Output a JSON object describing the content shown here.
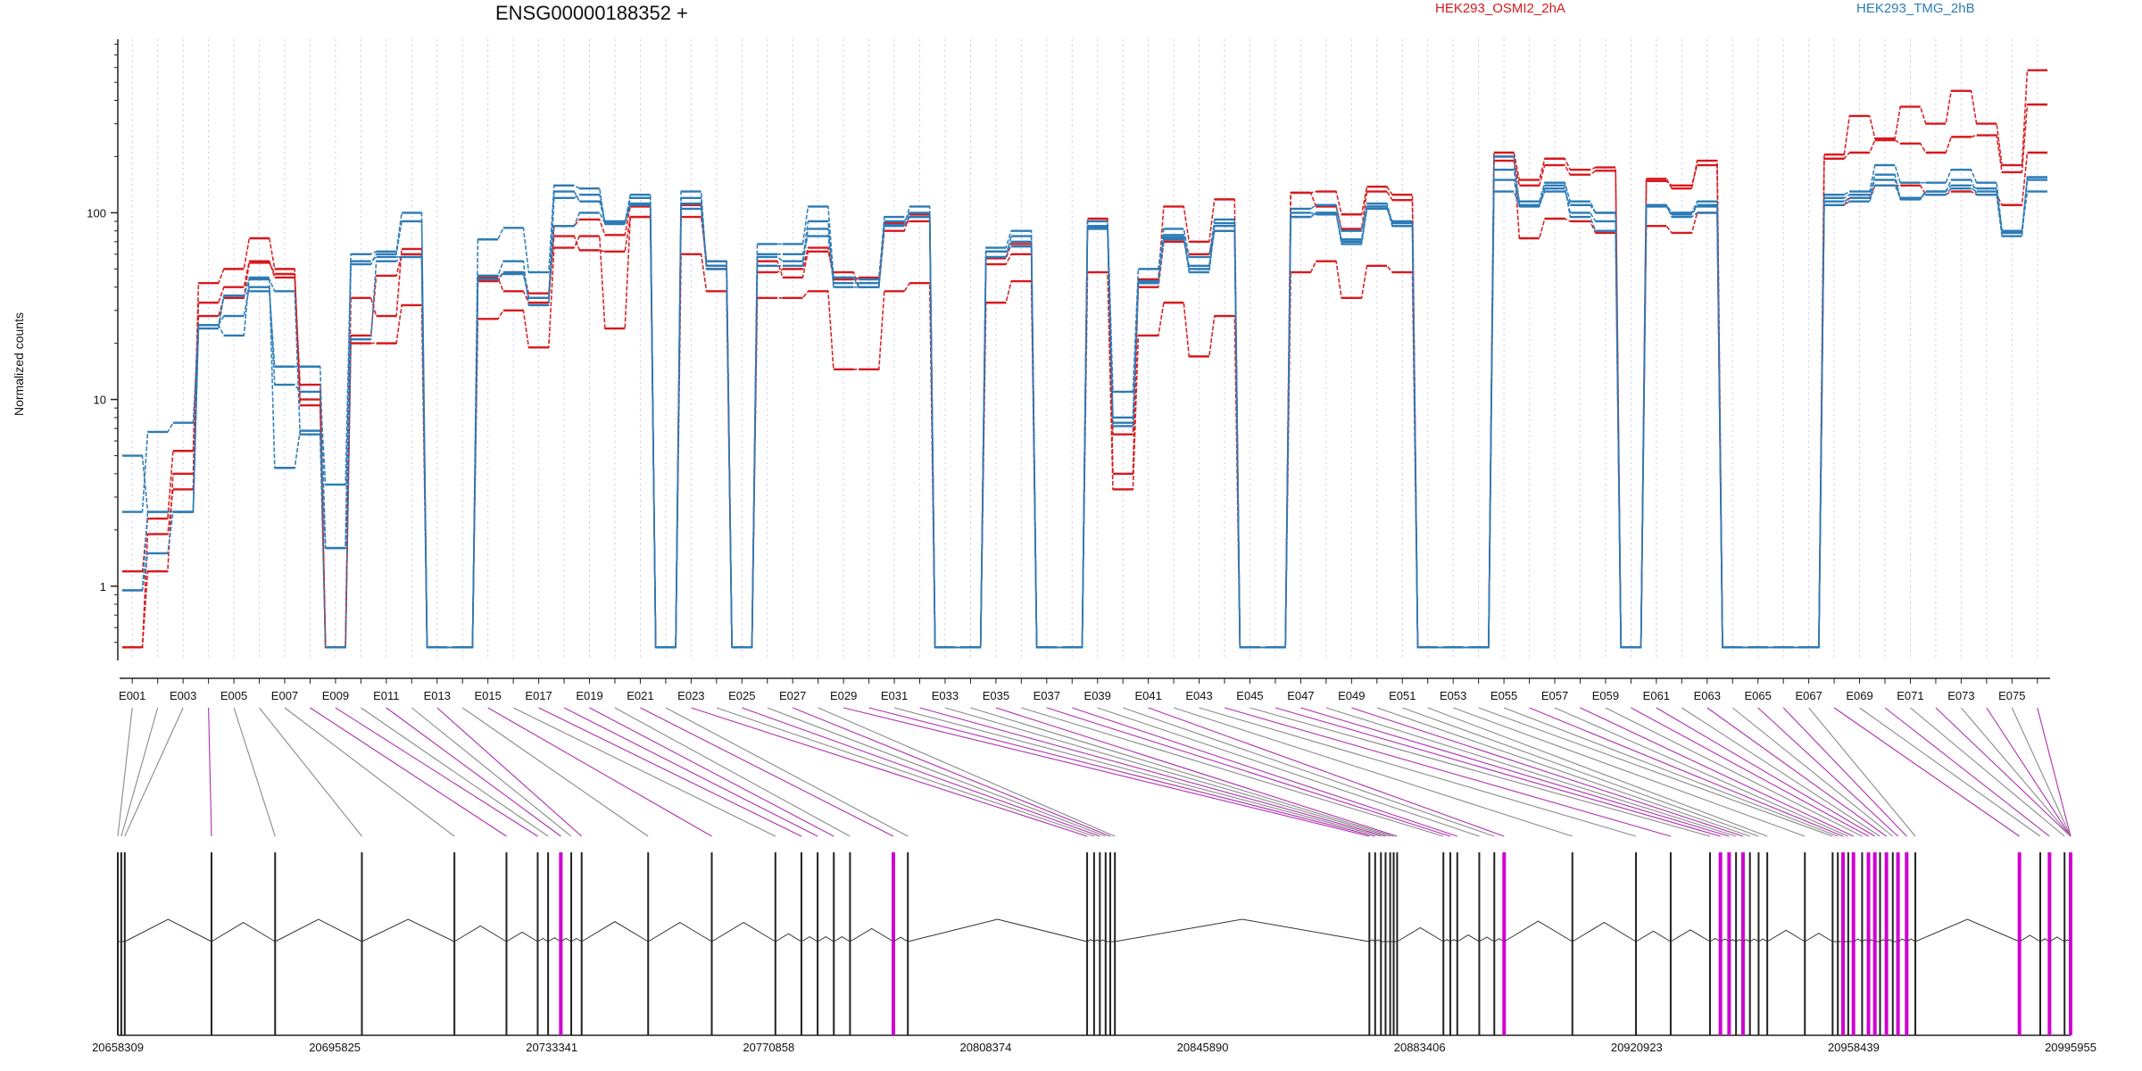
{
  "colors": {
    "osmi": "#d7191c",
    "tmg": "#2c7bb6",
    "grid": "#c7c7ef",
    "link_constitutive": "#8a8a8a",
    "link_differential": "#b030b0",
    "exon_highlight": "#d100d1",
    "track": "#222222"
  },
  "chart_data": {
    "type": "line",
    "title": "ENSG00000188352 +",
    "ylabel": "Normalized counts",
    "y_scale": "log",
    "ylim": [
      0.4,
      850
    ],
    "y_ticks": [
      {
        "value": 1,
        "label": "1"
      },
      {
        "value": 10,
        "label": "10"
      },
      {
        "value": 100,
        "label": "100"
      }
    ],
    "grid": true,
    "legend": [
      {
        "name": "HEK293_OSMI2_2hA",
        "color": "#d7191c",
        "position": "top-center"
      },
      {
        "name": "HEK293_TMG_2hB",
        "color": "#2c7bb6",
        "position": "top-right"
      }
    ],
    "exons": [
      "E001",
      "E002",
      "E003",
      "E004",
      "E005",
      "E006",
      "E007",
      "E008",
      "E009",
      "E010",
      "E011",
      "E012",
      "E013",
      "E014",
      "E015",
      "E016",
      "E017",
      "E018",
      "E019",
      "E020",
      "E021",
      "E022",
      "E023",
      "E024",
      "E025",
      "E026",
      "E027",
      "E028",
      "E029",
      "E030",
      "E031",
      "E032",
      "E033",
      "E034",
      "E035",
      "E036",
      "E037",
      "E038",
      "E039",
      "E040",
      "E041",
      "E042",
      "E043",
      "E044",
      "E045",
      "E046",
      "E047",
      "E048",
      "E049",
      "E050",
      "E051",
      "E052",
      "E053",
      "E054",
      "E055",
      "E056",
      "E057",
      "E058",
      "E059",
      "E060",
      "E061",
      "E062",
      "E063",
      "E064",
      "E065",
      "E066",
      "E067",
      "E068",
      "E069",
      "E070",
      "E071",
      "E072",
      "E073",
      "E074",
      "E075",
      "E076"
    ],
    "exon_tick_labels": [
      "E001",
      "E003",
      "E005",
      "E007",
      "E009",
      "E011",
      "E013",
      "E015",
      "E017",
      "E019",
      "E021",
      "E023",
      "E025",
      "E027",
      "E029",
      "E031",
      "E033",
      "E035",
      "E037",
      "E039",
      "E041",
      "E043",
      "E045",
      "E047",
      "E049",
      "E051",
      "E053",
      "E055",
      "E057",
      "E059",
      "E061",
      "E063",
      "E065",
      "E067",
      "E069",
      "E071",
      "E073",
      "E075"
    ],
    "series": [
      {
        "group": "osmi",
        "values": [
          0.47,
          1.9,
          3.3,
          42,
          50,
          73,
          50,
          9.3,
          0.47,
          20,
          20,
          32,
          0.47,
          0.47,
          27,
          30,
          19,
          65,
          75,
          24,
          95,
          0.47,
          60,
          38,
          0.47,
          35,
          35,
          38,
          14.5,
          14.5,
          38,
          42,
          0.47,
          0.47,
          33,
          43,
          0.47,
          0.47,
          48,
          3.3,
          22,
          33,
          17,
          28,
          0.47,
          0.47,
          48,
          55,
          35,
          52,
          48,
          0.47,
          0.47,
          0.47,
          200,
          73,
          93,
          90,
          78,
          0.47,
          85,
          78,
          100,
          0.47,
          0.47,
          0.47,
          0.47,
          110,
          120,
          140,
          140,
          125,
          130,
          125,
          110,
          210
        ]
      },
      {
        "group": "osmi",
        "values": [
          0.47,
          1.2,
          4.0,
          28,
          35,
          54,
          47,
          10,
          0.47,
          22,
          46,
          60,
          0.47,
          0.47,
          43,
          48,
          37,
          75,
          63,
          62,
          95,
          0.47,
          95,
          55,
          0.47,
          55,
          45,
          62,
          48,
          40,
          80,
          98,
          0.47,
          0.47,
          53,
          60,
          0.47,
          0.47,
          84,
          6.5,
          40,
          70,
          60,
          80,
          0.47,
          0.47,
          128,
          108,
          82,
          130,
          117,
          0.47,
          0.47,
          0.47,
          190,
          140,
          180,
          160,
          168,
          0.47,
          148,
          140,
          180,
          0.47,
          0.47,
          0.47,
          0.47,
          195,
          210,
          245,
          235,
          210,
          255,
          260,
          165,
          380
        ]
      },
      {
        "group": "osmi",
        "values": [
          1.2,
          2.3,
          5.3,
          33,
          40,
          55,
          45,
          12,
          0.47,
          35,
          28,
          64,
          0.47,
          0.47,
          45,
          38,
          33,
          85,
          92,
          76,
          108,
          0.47,
          110,
          50,
          0.47,
          48,
          50,
          65,
          44,
          45,
          88,
          90,
          0.47,
          0.47,
          57,
          68,
          0.47,
          0.47,
          93,
          4.0,
          44,
          108,
          70,
          118,
          0.47,
          0.47,
          128,
          130,
          98,
          138,
          125,
          0.47,
          0.47,
          0.47,
          210,
          150,
          195,
          170,
          175,
          0.47,
          152,
          135,
          190,
          0.47,
          0.47,
          0.47,
          0.47,
          205,
          330,
          250,
          370,
          300,
          450,
          300,
          180,
          580
        ]
      },
      {
        "group": "tmg",
        "values": [
          0.95,
          2.5,
          2.5,
          25,
          22,
          45,
          4.3,
          6.8,
          1.6,
          53,
          60,
          90,
          0.47,
          0.47,
          72,
          83,
          48,
          140,
          135,
          87,
          120,
          0.47,
          120,
          52,
          0.47,
          60,
          60,
          75,
          45,
          44,
          90,
          100,
          0.47,
          0.47,
          58,
          75,
          0.47,
          0.47,
          82,
          7.5,
          43,
          72,
          52,
          80,
          0.47,
          0.47,
          95,
          100,
          68,
          105,
          90,
          0.47,
          0.47,
          0.47,
          200,
          110,
          130,
          110,
          100,
          0.47,
          110,
          100,
          110,
          0.47,
          0.47,
          0.47,
          0.47,
          120,
          125,
          150,
          120,
          130,
          150,
          125,
          75,
          155
        ]
      },
      {
        "group": "tmg",
        "values": [
          2.5,
          6.7,
          7.5,
          25,
          28,
          40,
          12,
          11,
          3.5,
          60,
          62,
          100,
          0.47,
          0.47,
          46,
          55,
          32,
          120,
          125,
          88,
          125,
          0.47,
          130,
          50,
          0.47,
          68,
          68,
          108,
          45,
          40,
          85,
          108,
          0.47,
          0.47,
          65,
          80,
          0.47,
          0.47,
          90,
          11,
          50,
          82,
          58,
          92,
          0.47,
          0.47,
          105,
          110,
          80,
          112,
          88,
          0.47,
          0.47,
          0.47,
          170,
          115,
          145,
          115,
          100,
          0.47,
          110,
          100,
          115,
          0.47,
          0.47,
          0.47,
          0.47,
          125,
          130,
          180,
          145,
          145,
          170,
          145,
          80,
          155
        ]
      },
      {
        "group": "tmg",
        "values": [
          5.0,
          2.5,
          2.5,
          25,
          36,
          38,
          15,
          15,
          1.6,
          55,
          58,
          58,
          0.47,
          0.47,
          46,
          47,
          35,
          130,
          115,
          90,
          112,
          0.47,
          105,
          55,
          0.47,
          58,
          55,
          90,
          42,
          42,
          95,
          95,
          0.47,
          0.47,
          62,
          70,
          0.47,
          0.47,
          85,
          8.0,
          42,
          76,
          50,
          88,
          0.47,
          0.47,
          100,
          98,
          72,
          108,
          85,
          0.47,
          0.47,
          0.47,
          150,
          110,
          140,
          95,
          80,
          0.47,
          110,
          95,
          100,
          0.47,
          0.47,
          0.47,
          0.47,
          110,
          115,
          140,
          120,
          125,
          135,
          130,
          80,
          130
        ]
      },
      {
        "group": "tmg",
        "values": [
          0.95,
          1.5,
          2.5,
          24,
          36,
          44,
          38,
          6.5,
          0.47,
          21,
          55,
          58,
          0.47,
          0.47,
          44,
          48,
          35,
          85,
          100,
          88,
          110,
          0.47,
          112,
          52,
          0.47,
          52,
          52,
          82,
          40,
          40,
          86,
          95,
          0.47,
          0.47,
          62,
          66,
          0.47,
          0.47,
          84,
          7.2,
          42,
          74,
          48,
          85,
          0.47,
          0.47,
          95,
          100,
          70,
          108,
          85,
          0.47,
          0.47,
          0.47,
          130,
          108,
          135,
          100,
          90,
          0.47,
          108,
          98,
          108,
          0.47,
          0.47,
          0.47,
          0.47,
          115,
          120,
          160,
          118,
          130,
          140,
          135,
          78,
          150
        ]
      }
    ],
    "genomic_axis_labels": [
      "20658309",
      "20695825",
      "20733341",
      "20770858",
      "20808374",
      "20845890",
      "20883406",
      "20920923",
      "20958439",
      "20995955"
    ],
    "genomic_range": [
      20658309,
      20995955
    ]
  }
}
